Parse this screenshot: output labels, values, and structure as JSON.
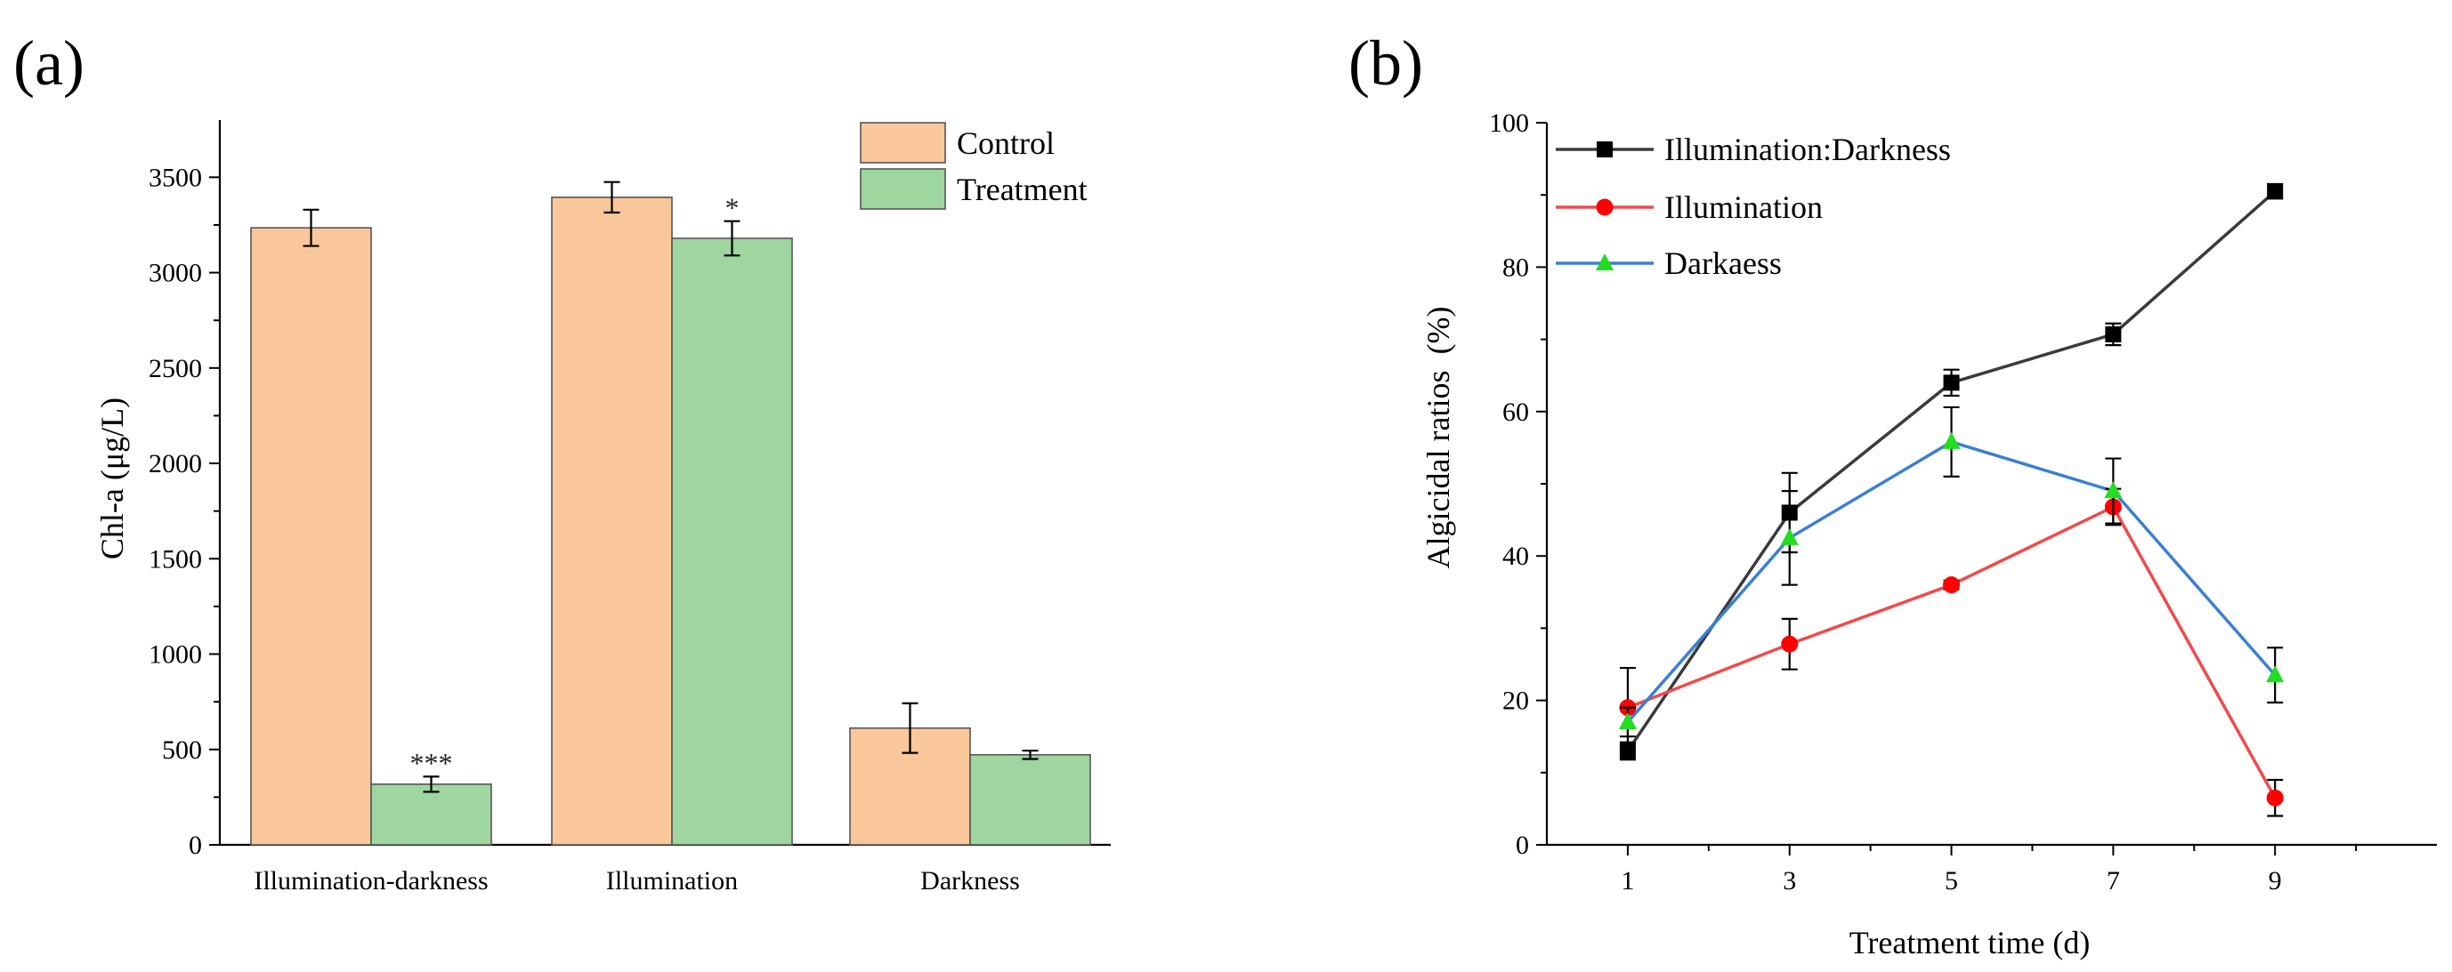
{
  "chart_data": [
    {
      "panel": "(a)",
      "type": "bar",
      "ylabel": "Chl-a (μg/L)",
      "xlabel": "",
      "ylim": [
        0,
        3800
      ],
      "yticks": [
        0,
        500,
        1000,
        1500,
        2000,
        2500,
        3000,
        3500
      ],
      "legend_position": "top-right",
      "categories": [
        "Illumination-darkness",
        "Illumination",
        "Darkness"
      ],
      "series": [
        {
          "name": "Control",
          "color": "#f9c79a",
          "values": [
            3235,
            3395,
            612
          ],
          "errors": [
            95,
            80,
            130
          ],
          "labels": [
            "",
            "",
            ""
          ]
        },
        {
          "name": "Treatment",
          "color": "#9fd6a0",
          "values": [
            318,
            3180,
            472
          ],
          "errors": [
            40,
            90,
            22
          ],
          "labels": [
            "***",
            "*",
            ""
          ]
        }
      ]
    },
    {
      "panel": "(b)",
      "type": "line",
      "xlabel": "Treatment time (d)",
      "ylabel": "Algicidal ratios  (%)",
      "xlim": [
        0,
        11
      ],
      "ylim": [
        0,
        100
      ],
      "xticks": [
        1,
        3,
        5,
        7,
        9
      ],
      "yticks": [
        0,
        20,
        40,
        60,
        80,
        100
      ],
      "legend_position": "top-left",
      "series": [
        {
          "name": "Illumination:Darkness",
          "color": "#3b3b3b",
          "marker": "square",
          "marker_color": "#000000",
          "x": [
            1,
            3,
            5,
            7,
            9
          ],
          "y": [
            13,
            46,
            64,
            70.7,
            90.5
          ],
          "errors": [
            1.2,
            5.5,
            1.8,
            1.5,
            1.0
          ]
        },
        {
          "name": "Illumination",
          "color": "#f24a4a",
          "marker": "circle",
          "marker_color": "#ff0000",
          "x": [
            1,
            3,
            5,
            7,
            9
          ],
          "y": [
            19,
            27.8,
            36,
            46.8,
            6.5
          ],
          "errors": [
            5.5,
            3.5,
            0.6,
            2.5,
            2.5
          ]
        },
        {
          "name": "Darkaess",
          "color": "#3a7fd5",
          "marker": "triangle",
          "marker_color": "#22dd22",
          "x": [
            1,
            3,
            5,
            7,
            9
          ],
          "y": [
            17,
            42.5,
            55.8,
            49,
            23.5
          ],
          "errors": [
            2.0,
            6.5,
            4.8,
            4.5,
            3.8
          ]
        }
      ]
    }
  ]
}
